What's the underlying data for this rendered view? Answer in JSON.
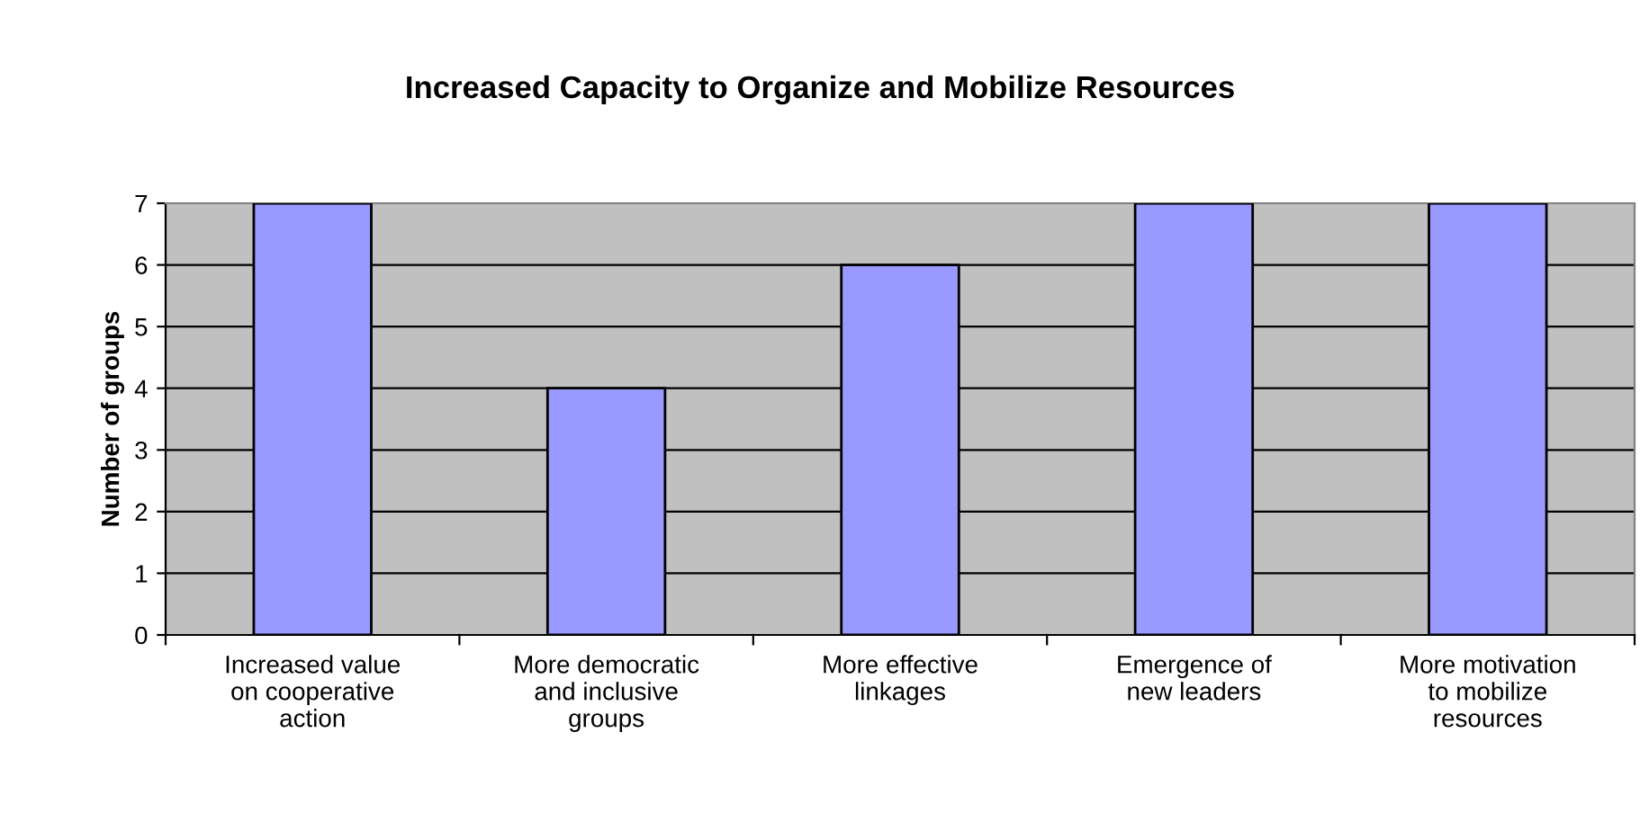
{
  "chart_data": {
    "type": "bar",
    "title": "Increased Capacity to Organize and Mobilize Resources",
    "ylabel": "Number of groups",
    "categories": [
      "Increased value\non cooperative\naction",
      "More democratic\nand inclusive\ngroups",
      "More effective\nlinkages",
      "Emergence of\nnew leaders",
      "More motivation\nto mobilize\nresources"
    ],
    "values": [
      7,
      4,
      6,
      7,
      7
    ],
    "color": "#9999ff",
    "ylim": [
      0,
      7
    ],
    "yticks": [
      0,
      1,
      2,
      3,
      4,
      5,
      6,
      7
    ],
    "grid": "y",
    "legend": false
  }
}
